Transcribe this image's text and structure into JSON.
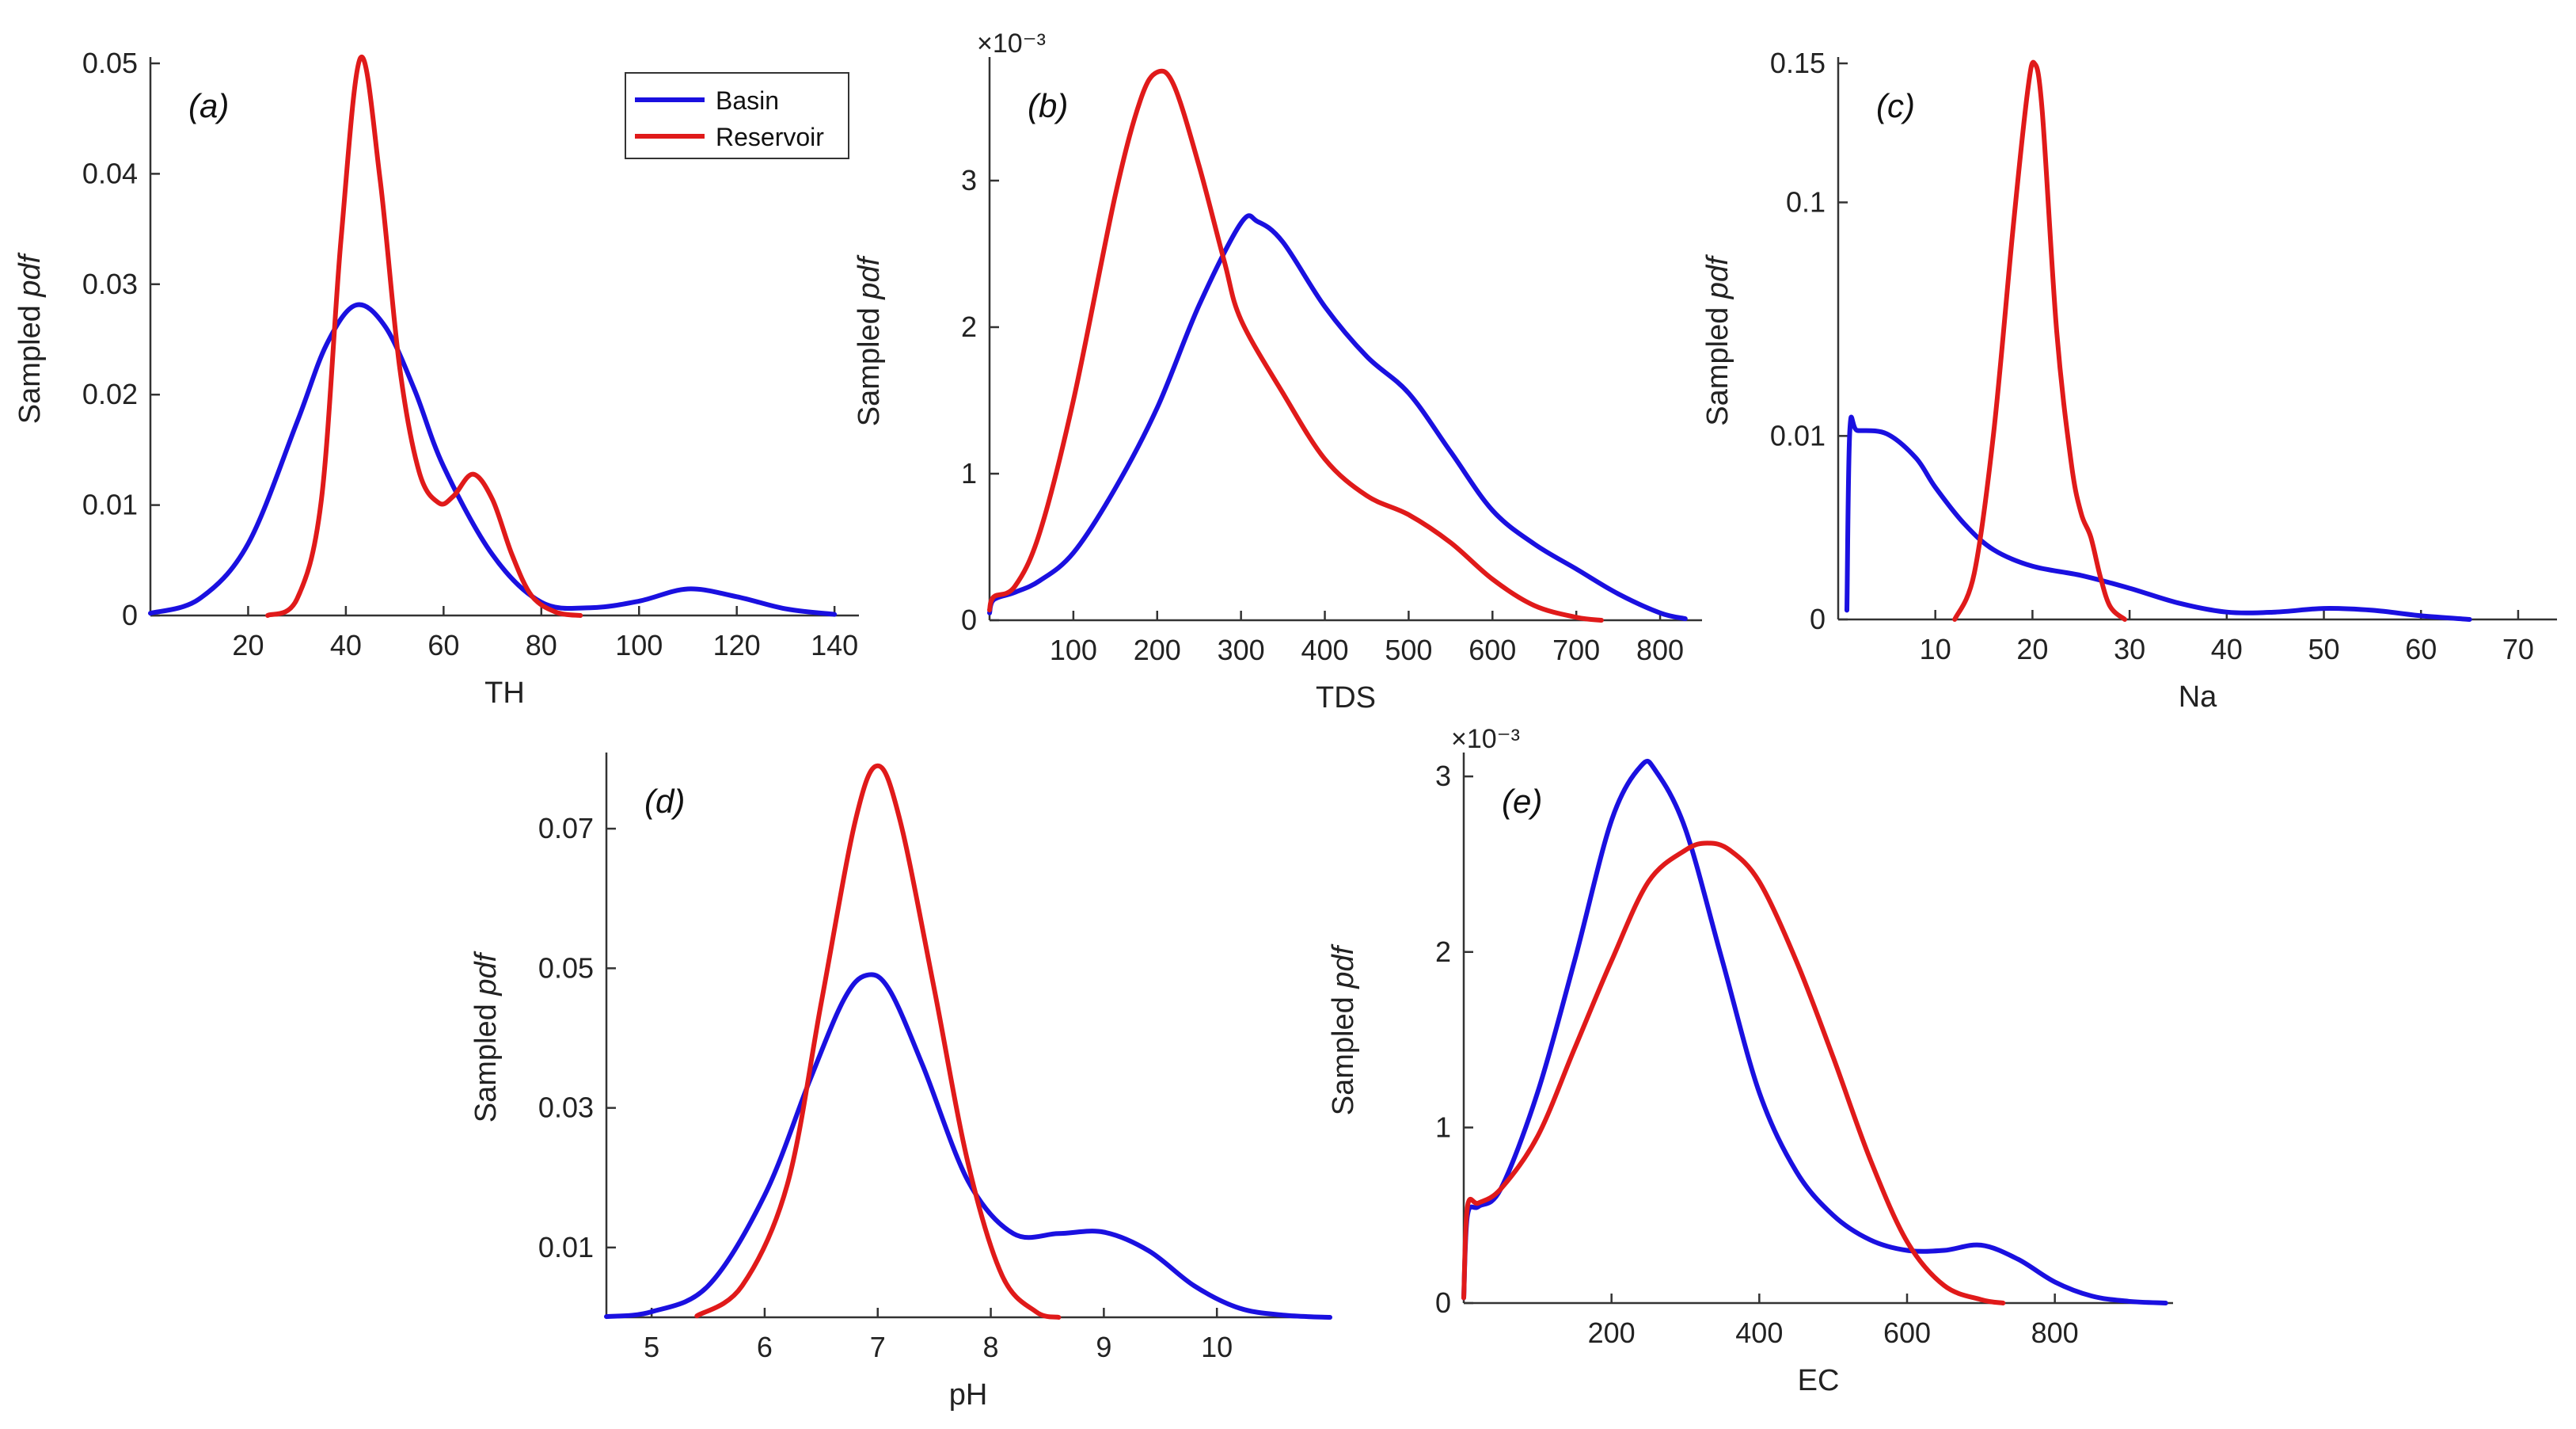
{
  "legend": {
    "entries": [
      {
        "name": "Basin",
        "color": "#1a10e0"
      },
      {
        "name": "Reservoir",
        "color": "#e01a1a"
      }
    ]
  },
  "ylabel_prefix": "Sampled",
  "ylabel_italic": "pdf",
  "chart_data": [
    {
      "id": "a",
      "type": "line",
      "panel_label": "(a)",
      "title": "",
      "xlabel": "TH",
      "ylabel": "Sampled pdf",
      "xlim": [
        0,
        145
      ],
      "ylim": [
        0,
        0.05
      ],
      "xticks": [
        20,
        40,
        60,
        80,
        100,
        120,
        140
      ],
      "xtick_labels": [
        "20",
        "40",
        "60",
        "80",
        "100",
        "120",
        "140"
      ],
      "yticks": [
        0,
        0.01,
        0.02,
        0.03,
        0.04,
        0.05
      ],
      "ytick_labels": [
        "0",
        "0.01",
        "0.02",
        "0.03",
        "0.04",
        "0.05"
      ],
      "exponent": "",
      "legend": "top-right",
      "series": [
        {
          "name": "Basin",
          "color": "#1a10e0",
          "x": [
            0,
            10,
            20,
            30,
            36,
            42,
            48,
            54,
            60,
            70,
            80,
            90,
            100,
            110,
            120,
            130,
            140
          ],
          "values": [
            0.0002,
            0.0015,
            0.0065,
            0.0175,
            0.0245,
            0.0281,
            0.0262,
            0.0205,
            0.0135,
            0.0055,
            0.0012,
            0.0007,
            0.0013,
            0.0024,
            0.0017,
            0.0006,
            0.0001
          ]
        },
        {
          "name": "Reservoir",
          "color": "#e01a1a",
          "x": [
            24,
            30,
            35,
            39,
            43,
            47,
            51,
            55,
            59,
            62,
            66,
            70,
            74,
            78,
            83,
            88
          ],
          "values": [
            0,
            0.0015,
            0.0105,
            0.034,
            0.0505,
            0.0395,
            0.0225,
            0.013,
            0.0102,
            0.0108,
            0.0128,
            0.0105,
            0.0055,
            0.0018,
            0.0003,
            0
          ]
        }
      ]
    },
    {
      "id": "b",
      "type": "line",
      "panel_label": "(b)",
      "title": "",
      "xlabel": "TDS",
      "ylabel": "Sampled pdf",
      "xlim": [
        0,
        850
      ],
      "ylim": [
        0,
        0.0038
      ],
      "xticks": [
        100,
        200,
        300,
        400,
        500,
        600,
        700,
        800
      ],
      "xtick_labels": [
        "100",
        "200",
        "300",
        "400",
        "500",
        "600",
        "700",
        "800"
      ],
      "yticks": [
        0,
        0.001,
        0.002,
        0.003
      ],
      "ytick_labels": [
        "0",
        "1",
        "2",
        "3"
      ],
      "exponent": "×10⁻³",
      "series": [
        {
          "name": "Basin",
          "color": "#1a10e0",
          "x": [
            0,
            5,
            30,
            60,
            100,
            150,
            200,
            250,
            300,
            320,
            350,
            400,
            450,
            500,
            550,
            600,
            650,
            700,
            750,
            800,
            830
          ],
          "values": [
            5e-05,
            0.00014,
            0.00019,
            0.00027,
            0.00046,
            0.0009,
            0.00145,
            0.00215,
            0.00271,
            0.00272,
            0.00258,
            0.00214,
            0.0018,
            0.00155,
            0.00115,
            0.00075,
            0.00052,
            0.00035,
            0.00018,
            5e-05,
            1e-05
          ]
        },
        {
          "name": "Reservoir",
          "color": "#e01a1a",
          "x": [
            0,
            5,
            30,
            60,
            100,
            150,
            180,
            200,
            220,
            250,
            280,
            300,
            350,
            400,
            450,
            500,
            550,
            600,
            650,
            700,
            730
          ],
          "values": [
            7e-05,
            0.00016,
            0.00023,
            0.0006,
            0.0015,
            0.0029,
            0.00355,
            0.00374,
            0.00365,
            0.0031,
            0.00245,
            0.00205,
            0.00155,
            0.0011,
            0.00085,
            0.00072,
            0.00053,
            0.00028,
            0.0001,
            2e-05,
            0
          ]
        }
      ]
    },
    {
      "id": "c",
      "type": "line",
      "panel_label": "(c)",
      "title": "",
      "xlabel": "Na",
      "ylabel": "Sampled pdf",
      "xlim": [
        0,
        74
      ],
      "ylim": [
        0,
        0.15
      ],
      "xticks": [
        10,
        20,
        30,
        40,
        50,
        60,
        70
      ],
      "xtick_labels": [
        "10",
        "20",
        "30",
        "40",
        "50",
        "60",
        "70"
      ],
      "yticks": [
        0,
        0.01,
        0.1,
        0.15
      ],
      "ytick_labels": [
        "0",
        "0.01",
        "0.1",
        "0.15"
      ],
      "ytick_positions": [
        0,
        0.33,
        0.75,
        1.0
      ],
      "exponent": "",
      "series": [
        {
          "name": "Basin",
          "color": "#1a10e0",
          "x": [
            0.9,
            1.2,
            2,
            5,
            8,
            10,
            13,
            16,
            20,
            25,
            30,
            35,
            40,
            45,
            50,
            55,
            60,
            65
          ],
          "values": [
            0.0005,
            0.0121,
            0.0121,
            0.0108,
            0.0088,
            0.0072,
            0.0052,
            0.0038,
            0.0029,
            0.0024,
            0.0017,
            0.0009,
            0.0004,
            0.0004,
            0.0006,
            0.0005,
            0.0002,
            0
          ]
        },
        {
          "name": "Reservoir",
          "color": "#e01a1a",
          "x": [
            12,
            14,
            16,
            18,
            19.5,
            20.2,
            21,
            22.5,
            24,
            25,
            26,
            27,
            28,
            29.5
          ],
          "values": [
            0,
            0.0025,
            0.011,
            0.09,
            0.14,
            0.15,
            0.133,
            0.05,
            0.0085,
            0.0058,
            0.0045,
            0.0023,
            0.0007,
            0
          ]
        }
      ]
    },
    {
      "id": "d",
      "type": "line",
      "panel_label": "(d)",
      "title": "",
      "xlabel": "pH",
      "ylabel": "Sampled pdf",
      "xlim": [
        4.6,
        11.0
      ],
      "ylim": [
        0,
        0.08
      ],
      "xticks": [
        5,
        6,
        7,
        8,
        9,
        10
      ],
      "xtick_labels": [
        "5",
        "6",
        "7",
        "8",
        "9",
        "10"
      ],
      "yticks": [
        0.01,
        0.03,
        0.05,
        0.07
      ],
      "ytick_labels": [
        "0.01",
        "0.03",
        "0.05",
        "0.07"
      ],
      "exponent": "",
      "series": [
        {
          "name": "Basin",
          "color": "#1a10e0",
          "x": [
            4.6,
            5.0,
            5.5,
            6.0,
            6.4,
            6.7,
            6.9,
            7.1,
            7.4,
            7.8,
            8.2,
            8.6,
            9.0,
            9.4,
            9.8,
            10.2,
            10.6,
            11.0
          ],
          "values": [
            0.0001,
            0.0008,
            0.0045,
            0.0175,
            0.034,
            0.0455,
            0.049,
            0.047,
            0.036,
            0.0195,
            0.012,
            0.012,
            0.0122,
            0.0095,
            0.0045,
            0.0013,
            0.0003,
            0
          ]
        },
        {
          "name": "Reservoir",
          "color": "#e01a1a",
          "x": [
            5.4,
            5.8,
            6.2,
            6.5,
            6.8,
            7.0,
            7.2,
            7.5,
            7.8,
            8.1,
            8.4,
            8.6
          ],
          "values": [
            0.0002,
            0.0045,
            0.019,
            0.045,
            0.071,
            0.079,
            0.071,
            0.047,
            0.022,
            0.006,
            0.0008,
            0
          ]
        }
      ]
    },
    {
      "id": "e",
      "type": "line",
      "panel_label": "(e)",
      "title": "",
      "xlabel": "EC",
      "ylabel": "Sampled pdf",
      "xlim": [
        0,
        960
      ],
      "ylim": [
        0,
        0.0031
      ],
      "xticks": [
        200,
        400,
        600,
        800
      ],
      "xtick_labels": [
        "200",
        "400",
        "600",
        "800"
      ],
      "yticks": [
        0,
        0.001,
        0.002,
        0.003
      ],
      "ytick_labels": [
        "0",
        "1",
        "2",
        "3"
      ],
      "exponent": "×10⁻³",
      "series": [
        {
          "name": "Basin",
          "color": "#1a10e0",
          "x": [
            0,
            5,
            20,
            50,
            100,
            150,
            200,
            240,
            260,
            300,
            350,
            400,
            450,
            500,
            550,
            600,
            650,
            700,
            750,
            800,
            850,
            900,
            950
          ],
          "values": [
            3e-05,
            0.0005,
            0.00055,
            0.00065,
            0.0012,
            0.00195,
            0.00275,
            0.00306,
            0.00303,
            0.0027,
            0.00195,
            0.0012,
            0.00075,
            0.0005,
            0.00036,
            0.0003,
            0.0003,
            0.00033,
            0.00025,
            0.00012,
            4e-05,
            1e-05,
            0
          ]
        },
        {
          "name": "Reservoir",
          "color": "#e01a1a",
          "x": [
            0,
            5,
            20,
            50,
            100,
            150,
            200,
            250,
            300,
            330,
            360,
            400,
            450,
            500,
            550,
            600,
            650,
            700,
            730
          ],
          "values": [
            3e-05,
            0.00055,
            0.00057,
            0.00065,
            0.00095,
            0.00145,
            0.00195,
            0.0024,
            0.00258,
            0.00262,
            0.00258,
            0.0024,
            0.00195,
            0.0014,
            0.00082,
            0.00035,
            0.0001,
            2e-05,
            0
          ]
        }
      ]
    }
  ]
}
